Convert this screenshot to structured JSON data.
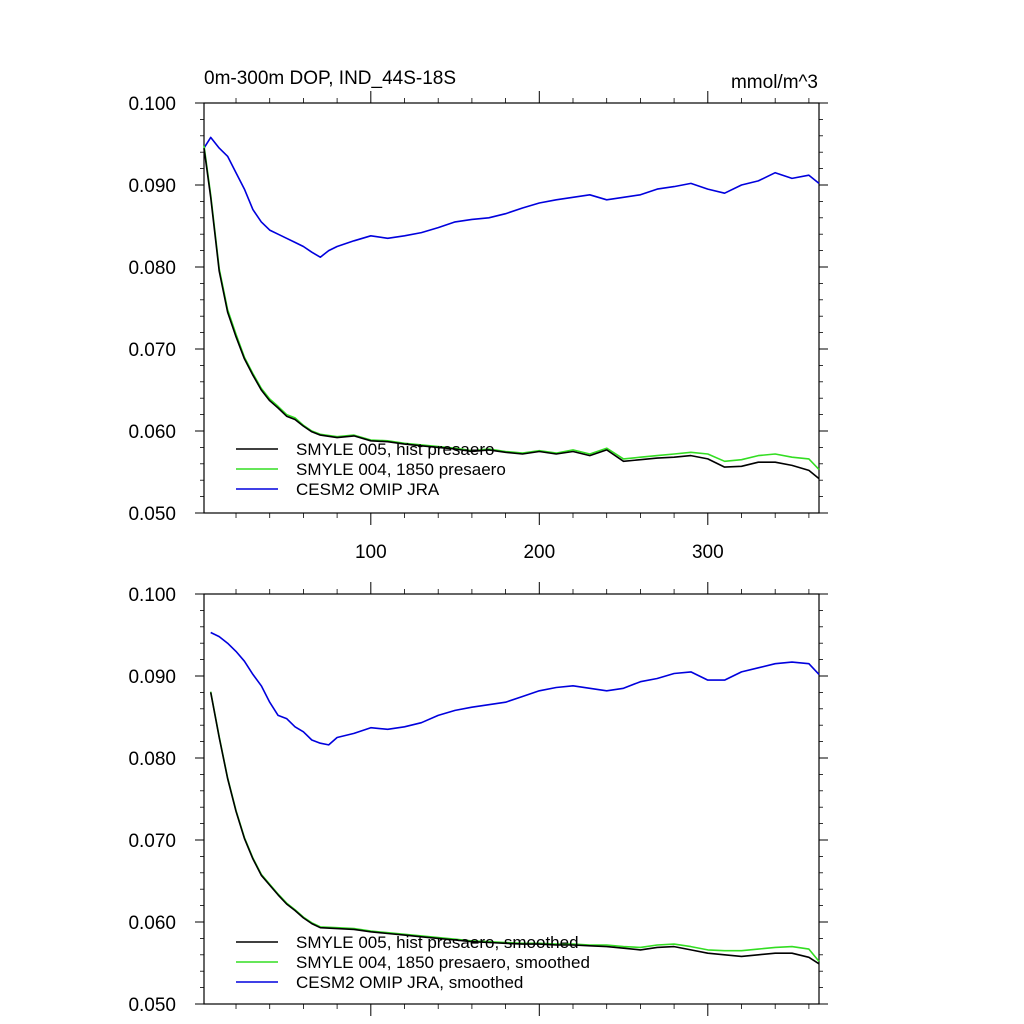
{
  "chart_data": [
    {
      "type": "line",
      "title": "0m-300m DOP, IND_44S-18S",
      "units": "mmol/m^3",
      "xlabel": "",
      "ylabel": "",
      "xlim": [
        1,
        366
      ],
      "ylim": [
        0.05,
        0.1
      ],
      "x_ticks": [
        100,
        200,
        300
      ],
      "x_tick_labels": [
        "100",
        "200",
        "300"
      ],
      "y_ticks": [
        0.05,
        0.06,
        0.07,
        0.08,
        0.09,
        0.1
      ],
      "y_tick_labels": [
        "0.050",
        "0.060",
        "0.070",
        "0.080",
        "0.090",
        "0.100"
      ],
      "grid": false,
      "legend_position": "bottom-left",
      "series": [
        {
          "name": "SMYLE 005, hist presaero",
          "color": "#000000",
          "x": [
            1,
            5,
            10,
            15,
            20,
            25,
            30,
            35,
            40,
            45,
            50,
            55,
            60,
            65,
            70,
            80,
            90,
            100,
            110,
            120,
            130,
            140,
            150,
            160,
            170,
            180,
            190,
            200,
            210,
            220,
            230,
            240,
            250,
            260,
            270,
            280,
            290,
            300,
            310,
            320,
            330,
            340,
            350,
            360,
            366
          ],
          "y": [
            0.0945,
            0.0885,
            0.0795,
            0.0745,
            0.0715,
            0.0688,
            0.0668,
            0.065,
            0.0637,
            0.0628,
            0.0618,
            0.0614,
            0.0606,
            0.0599,
            0.0595,
            0.0592,
            0.0594,
            0.0588,
            0.0587,
            0.0584,
            0.0582,
            0.058,
            0.0578,
            0.0575,
            0.0577,
            0.0574,
            0.0572,
            0.0575,
            0.0572,
            0.0575,
            0.057,
            0.0577,
            0.0563,
            0.0565,
            0.0567,
            0.0568,
            0.057,
            0.0566,
            0.0556,
            0.0557,
            0.0562,
            0.0562,
            0.0558,
            0.0552,
            0.0542
          ]
        },
        {
          "name": "SMYLE 004, 1850 presaero",
          "color": "#33dd22",
          "x": [
            1,
            5,
            10,
            15,
            20,
            25,
            30,
            35,
            40,
            45,
            50,
            55,
            60,
            65,
            70,
            80,
            90,
            100,
            110,
            120,
            130,
            140,
            150,
            160,
            170,
            180,
            190,
            200,
            210,
            220,
            230,
            240,
            250,
            260,
            270,
            280,
            290,
            300,
            310,
            320,
            330,
            340,
            350,
            360,
            366
          ],
          "y": [
            0.0948,
            0.0888,
            0.0798,
            0.0748,
            0.0718,
            0.069,
            0.067,
            0.0652,
            0.0639,
            0.063,
            0.062,
            0.0616,
            0.0607,
            0.06,
            0.0596,
            0.0593,
            0.0595,
            0.0589,
            0.0588,
            0.0585,
            0.0583,
            0.0581,
            0.0579,
            0.0576,
            0.0578,
            0.0575,
            0.0573,
            0.0576,
            0.0573,
            0.0577,
            0.0572,
            0.0579,
            0.0566,
            0.0568,
            0.057,
            0.0572,
            0.0574,
            0.0572,
            0.0563,
            0.0565,
            0.057,
            0.0572,
            0.0568,
            0.0566,
            0.0553
          ]
        },
        {
          "name": "CESM2 OMIP JRA",
          "color": "#0000dd",
          "x": [
            1,
            5,
            10,
            15,
            20,
            25,
            30,
            35,
            40,
            45,
            50,
            55,
            60,
            65,
            70,
            75,
            80,
            90,
            100,
            110,
            120,
            130,
            140,
            150,
            160,
            170,
            180,
            190,
            200,
            210,
            220,
            230,
            240,
            250,
            260,
            270,
            280,
            290,
            300,
            310,
            320,
            330,
            340,
            350,
            360,
            366
          ],
          "y": [
            0.0945,
            0.0958,
            0.0945,
            0.0935,
            0.0915,
            0.0895,
            0.087,
            0.0855,
            0.0845,
            0.084,
            0.0835,
            0.083,
            0.0825,
            0.0818,
            0.0812,
            0.082,
            0.0825,
            0.0832,
            0.0838,
            0.0835,
            0.0838,
            0.0842,
            0.0848,
            0.0855,
            0.0858,
            0.086,
            0.0865,
            0.0872,
            0.0878,
            0.0882,
            0.0885,
            0.0888,
            0.0882,
            0.0885,
            0.0888,
            0.0895,
            0.0898,
            0.0902,
            0.0895,
            0.089,
            0.09,
            0.0905,
            0.0915,
            0.0908,
            0.0912,
            0.0902
          ]
        }
      ]
    },
    {
      "type": "line",
      "title": "",
      "units": "",
      "xlabel": "",
      "ylabel": "",
      "xlim": [
        1,
        366
      ],
      "ylim": [
        0.05,
        0.1
      ],
      "x_ticks": [
        100,
        200,
        300
      ],
      "x_tick_labels": [
        "",
        "",
        ""
      ],
      "y_ticks": [
        0.05,
        0.06,
        0.07,
        0.08,
        0.09,
        0.1
      ],
      "y_tick_labels": [
        "0.050",
        "0.060",
        "0.070",
        "0.080",
        "0.090",
        "0.100"
      ],
      "grid": false,
      "legend_position": "bottom-left",
      "series": [
        {
          "name": "SMYLE 005, hist presaero, smoothed",
          "color": "#000000",
          "x": [
            5,
            10,
            15,
            20,
            25,
            30,
            35,
            40,
            45,
            50,
            55,
            60,
            65,
            70,
            80,
            90,
            100,
            110,
            120,
            130,
            140,
            150,
            160,
            170,
            180,
            190,
            200,
            210,
            220,
            230,
            240,
            250,
            260,
            270,
            280,
            290,
            300,
            310,
            320,
            330,
            340,
            350,
            360,
            366
          ],
          "y": [
            0.088,
            0.0825,
            0.0775,
            0.0735,
            0.0702,
            0.0677,
            0.0657,
            0.0645,
            0.0633,
            0.0622,
            0.0614,
            0.0605,
            0.0598,
            0.0593,
            0.0592,
            0.0591,
            0.0588,
            0.0586,
            0.0584,
            0.0582,
            0.058,
            0.0578,
            0.0576,
            0.0575,
            0.0574,
            0.0573,
            0.0573,
            0.0572,
            0.0572,
            0.0571,
            0.057,
            0.0568,
            0.0566,
            0.0569,
            0.057,
            0.0566,
            0.0562,
            0.056,
            0.0558,
            0.056,
            0.0562,
            0.0562,
            0.0557,
            0.0549
          ]
        },
        {
          "name": "SMYLE 004, 1850 presaero, smoothed",
          "color": "#33dd22",
          "x": [
            5,
            10,
            15,
            20,
            25,
            30,
            35,
            40,
            45,
            50,
            55,
            60,
            65,
            70,
            80,
            90,
            100,
            110,
            120,
            130,
            140,
            150,
            160,
            170,
            180,
            190,
            200,
            210,
            220,
            230,
            240,
            250,
            260,
            270,
            280,
            290,
            300,
            310,
            320,
            330,
            340,
            350,
            360,
            366
          ],
          "y": [
            0.0881,
            0.0826,
            0.0776,
            0.0736,
            0.0703,
            0.0678,
            0.0658,
            0.0646,
            0.0634,
            0.0623,
            0.0615,
            0.0606,
            0.0599,
            0.0594,
            0.0593,
            0.0592,
            0.0589,
            0.0587,
            0.0585,
            0.0583,
            0.0581,
            0.0579,
            0.0577,
            0.0576,
            0.0575,
            0.0574,
            0.0574,
            0.0573,
            0.0573,
            0.0572,
            0.0572,
            0.057,
            0.0569,
            0.0572,
            0.0573,
            0.057,
            0.0566,
            0.0565,
            0.0565,
            0.0567,
            0.0569,
            0.057,
            0.0567,
            0.0552
          ]
        },
        {
          "name": "CESM2 OMIP JRA, smoothed",
          "color": "#0000dd",
          "x": [
            5,
            10,
            15,
            20,
            25,
            30,
            35,
            40,
            45,
            50,
            55,
            60,
            65,
            70,
            75,
            80,
            90,
            100,
            110,
            120,
            130,
            140,
            150,
            160,
            170,
            180,
            190,
            200,
            210,
            220,
            230,
            240,
            250,
            260,
            270,
            280,
            290,
            300,
            310,
            320,
            330,
            340,
            350,
            360,
            366
          ],
          "y": [
            0.0953,
            0.0948,
            0.094,
            0.093,
            0.0918,
            0.0902,
            0.0888,
            0.0868,
            0.0852,
            0.0848,
            0.0838,
            0.0832,
            0.0822,
            0.0818,
            0.0816,
            0.0825,
            0.083,
            0.0837,
            0.0835,
            0.0838,
            0.0843,
            0.0852,
            0.0858,
            0.0862,
            0.0865,
            0.0868,
            0.0875,
            0.0882,
            0.0886,
            0.0888,
            0.0885,
            0.0882,
            0.0885,
            0.0893,
            0.0897,
            0.0903,
            0.0905,
            0.0895,
            0.0895,
            0.0905,
            0.091,
            0.0915,
            0.0917,
            0.0915,
            0.0902
          ]
        }
      ]
    }
  ]
}
